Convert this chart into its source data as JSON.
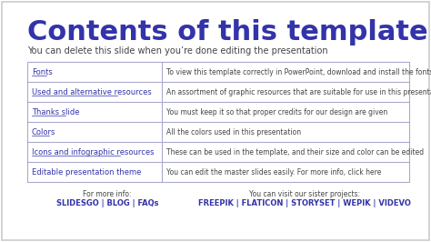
{
  "bg_color": "#ffffff",
  "border_color": "#cccccc",
  "title": "Contents of this template",
  "title_color": "#3333aa",
  "subtitle": "You can delete this slide when you’re done editing the presentation",
  "subtitle_color": "#444444",
  "table_border_color": "#aaaacc",
  "table_rows": [
    {
      "left": "Fonts",
      "left_underline": true,
      "right": "To view this template correctly in PowerPoint, download and install the fonts we used"
    },
    {
      "left": "Used and alternative resources",
      "left_underline": true,
      "right": "An assortment of graphic resources that are suitable for use in this presentation"
    },
    {
      "left": "Thanks slide",
      "left_underline": true,
      "right": "You must keep it so that proper credits for our design are given"
    },
    {
      "left": "Colors",
      "left_underline": true,
      "right": "All the colors used in this presentation"
    },
    {
      "left": "Icons and infographic resources",
      "left_underline": true,
      "right": "These can be used in the template, and their size and color can be edited"
    },
    {
      "left": "Editable presentation theme",
      "left_underline": false,
      "right": "You can edit the master slides easily. For more info, click here"
    }
  ],
  "footer_left_label": "For more info:",
  "footer_left_links": "SLIDESGO | BLOG | FAQs",
  "footer_right_label": "You can visit our sister projects:",
  "footer_right_links": "FREEPIK | FLATICON | STORYSET | WEPIK | VIDEVO",
  "link_color": "#3333aa",
  "text_color": "#444444",
  "font_size_title": 22,
  "font_size_subtitle": 7,
  "font_size_table": 6,
  "font_size_footer": 5.5
}
